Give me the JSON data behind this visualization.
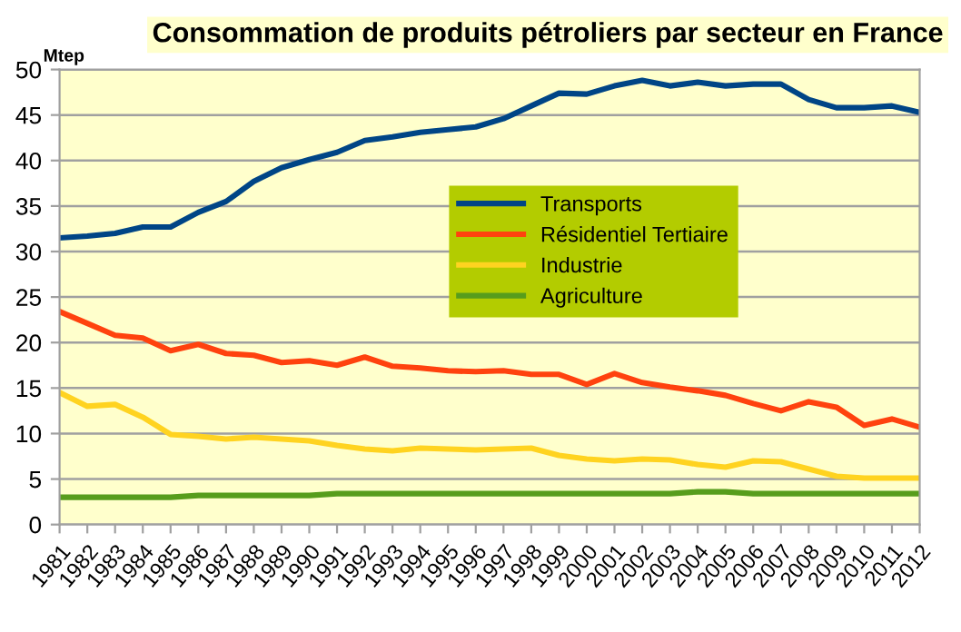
{
  "chart_data": {
    "type": "line",
    "title": "Consommation de produits pétroliers par secteur en France",
    "ylabel": "Mtep",
    "categories": [
      "1981",
      "1982",
      "1983",
      "1984",
      "1985",
      "1986",
      "1987",
      "1988",
      "1989",
      "1990",
      "1991",
      "1992",
      "1993",
      "1994",
      "1995",
      "1996",
      "1997",
      "1998",
      "1999",
      "2000",
      "2001",
      "2002",
      "2003",
      "2004",
      "2005",
      "2006",
      "2007",
      "2008",
      "2009",
      "2010",
      "2011",
      "2012"
    ],
    "series": [
      {
        "name": "Transports",
        "color": "#004586",
        "values": [
          31.5,
          31.7,
          32.0,
          32.7,
          32.7,
          34.3,
          35.5,
          37.7,
          39.2,
          40.1,
          40.9,
          42.2,
          42.6,
          43.1,
          43.4,
          43.7,
          44.6,
          46.0,
          47.4,
          47.3,
          48.2,
          48.8,
          48.2,
          48.6,
          48.2,
          48.4,
          48.4,
          46.7,
          45.8,
          45.8,
          46.0,
          45.3
        ]
      },
      {
        "name": "Résidentiel Tertiaire",
        "color": "#ff420e",
        "values": [
          23.4,
          22.1,
          20.8,
          20.5,
          19.1,
          19.8,
          18.8,
          18.6,
          17.8,
          18.0,
          17.5,
          18.4,
          17.4,
          17.2,
          16.9,
          16.8,
          16.9,
          16.5,
          16.5,
          15.4,
          16.6,
          15.6,
          15.1,
          14.7,
          14.2,
          13.3,
          12.5,
          13.5,
          12.9,
          10.9,
          11.6,
          10.7
        ]
      },
      {
        "name": "Industrie",
        "color": "#ffd320",
        "values": [
          14.5,
          13.0,
          13.2,
          11.8,
          9.9,
          9.7,
          9.4,
          9.6,
          9.4,
          9.2,
          8.7,
          8.3,
          8.1,
          8.4,
          8.3,
          8.2,
          8.3,
          8.4,
          7.6,
          7.2,
          7.0,
          7.2,
          7.1,
          6.6,
          6.3,
          7.0,
          6.9,
          6.1,
          5.3,
          5.1,
          5.1,
          5.1
        ]
      },
      {
        "name": "Agriculture",
        "color": "#579d1c",
        "values": [
          3.0,
          3.0,
          3.0,
          3.0,
          3.0,
          3.2,
          3.2,
          3.2,
          3.2,
          3.2,
          3.4,
          3.4,
          3.4,
          3.4,
          3.4,
          3.4,
          3.4,
          3.4,
          3.4,
          3.4,
          3.4,
          3.4,
          3.4,
          3.6,
          3.6,
          3.4,
          3.4,
          3.4,
          3.4,
          3.4,
          3.4,
          3.4
        ]
      }
    ],
    "ylim": [
      0,
      50
    ],
    "yticks": [
      0,
      5,
      10,
      15,
      20,
      25,
      30,
      35,
      40,
      45,
      50
    ],
    "grid": "y",
    "legend": "right",
    "marker": "none",
    "line_style": "solid"
  }
}
